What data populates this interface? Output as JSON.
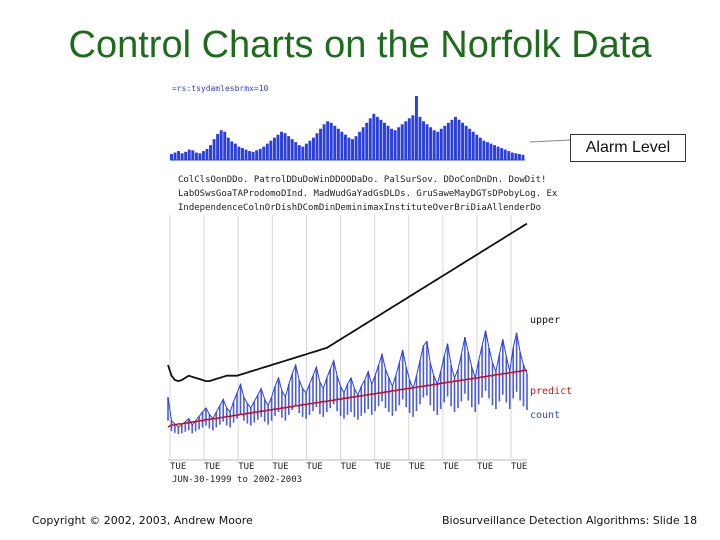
{
  "page": {
    "title": "Control Charts on the Norfolk Data",
    "footer_left": "Copyright © 2002, 2003, Andrew Moore",
    "footer_right": "Biosurveillance Detection Algorithms: Slide 18",
    "alarm_label": "Alarm Level"
  },
  "chart_data": [
    {
      "type": "bar",
      "title": "Alarm level strip",
      "header_label": "=rs:tsydamlesbrmx=10",
      "note": "Dense daily bars (blue) of alarm level over the period",
      "color": "#2b3fe0",
      "series": [
        {
          "name": "alarm",
          "values": [
            8,
            10,
            12,
            9,
            11,
            14,
            13,
            10,
            9,
            12,
            15,
            20,
            28,
            35,
            40,
            38,
            30,
            25,
            22,
            18,
            16,
            14,
            12,
            11,
            13,
            15,
            18,
            22,
            26,
            30,
            34,
            38,
            36,
            32,
            28,
            24,
            20,
            18,
            22,
            26,
            30,
            36,
            42,
            48,
            52,
            50,
            46,
            42,
            38,
            34,
            30,
            28,
            32,
            38,
            44,
            50,
            56,
            62,
            58,
            54,
            50,
            46,
            42,
            40,
            44,
            48,
            52,
            56,
            60,
            86,
            58,
            52,
            48,
            44,
            40,
            38,
            42,
            46,
            50,
            54,
            58,
            54,
            50,
            46,
            42,
            38,
            34,
            30,
            26,
            24,
            22,
            20,
            18,
            16,
            14,
            12,
            10,
            9,
            8,
            7
          ]
        }
      ]
    },
    {
      "type": "line",
      "title": "Norfolk control chart",
      "x_tick_labels": [
        "TUE",
        "TUE",
        "TUE",
        "TUE",
        "TUE",
        "TUE",
        "TUE",
        "TUE",
        "TUE",
        "TUE",
        "TUE"
      ],
      "date_label": "JUN-30-1999 to 2002-2003",
      "header_rows": [
        "ColClsOonDDo. PatrolDDuDoWinDDOODaDo. PalSurSov. DDoConDnDn. DowDit!",
        "LabOSwsGoaTAProdomoDInd. MadWudGaYadGsDLDs. GruSaweMayDGTsDPobyLog. Ex",
        "IndependenceColnOrDishDComDinDeminimaxInstituteOverBriDiaAllenderDo"
      ],
      "series": [
        {
          "name": "count",
          "label": "count",
          "color": "#2b3fe0",
          "values": [
            40,
            18,
            15,
            12,
            14,
            17,
            20,
            14,
            18,
            22,
            26,
            30,
            24,
            20,
            26,
            32,
            38,
            30,
            26,
            36,
            44,
            52,
            40,
            34,
            30,
            36,
            42,
            48,
            38,
            32,
            40,
            50,
            58,
            46,
            40,
            52,
            62,
            70,
            56,
            48,
            44,
            52,
            60,
            68,
            54,
            48,
            58,
            66,
            74,
            60,
            50,
            44,
            52,
            58,
            48,
            42,
            50,
            56,
            64,
            52,
            60,
            70,
            80,
            66,
            58,
            50,
            60,
            72,
            84,
            68,
            56,
            48,
            60,
            74,
            88,
            92,
            72,
            60,
            52,
            64,
            78,
            90,
            70,
            58,
            66,
            80,
            96,
            82,
            68,
            58,
            74,
            88,
            102,
            86,
            72,
            64,
            80,
            94,
            78,
            64,
            86,
            100,
            82,
            70,
            62
          ]
        },
        {
          "name": "predict",
          "label": "predict",
          "color": "#d01010",
          "values": [
            12,
            14,
            14,
            15,
            15,
            16,
            16,
            17,
            17,
            18,
            18,
            19,
            19,
            20,
            20,
            21,
            21,
            22,
            22,
            23,
            23,
            24,
            24,
            25,
            25,
            26,
            26,
            27,
            27,
            28,
            28,
            29,
            29,
            30,
            30,
            31,
            31,
            32,
            32,
            33,
            33,
            34,
            34,
            35,
            35,
            36,
            36,
            37,
            37,
            38,
            38,
            39,
            39,
            40,
            40,
            41,
            41,
            42,
            42,
            43,
            43,
            44,
            44,
            45,
            45,
            46,
            46,
            47,
            47,
            48,
            48,
            49,
            49,
            50,
            50,
            51,
            51,
            52,
            52,
            53,
            53,
            54,
            54,
            55,
            55,
            56,
            56,
            57,
            57,
            58,
            58,
            59,
            59,
            60,
            60,
            61,
            61,
            62,
            62,
            63,
            63,
            64,
            64,
            65,
            65
          ]
        },
        {
          "name": "upper",
          "label": "upper",
          "color": "#111111",
          "values": [
            70,
            60,
            56,
            55,
            56,
            58,
            60,
            59,
            58,
            57,
            56,
            55,
            55,
            56,
            57,
            58,
            59,
            60,
            60,
            60,
            60,
            61,
            62,
            63,
            64,
            65,
            66,
            67,
            68,
            69,
            70,
            71,
            72,
            73,
            74,
            75,
            76,
            77,
            78,
            79,
            80,
            81,
            82,
            83,
            84,
            85,
            86,
            88,
            90,
            92,
            94,
            96,
            98,
            100,
            102,
            104,
            106,
            108,
            110,
            112,
            114,
            116,
            118,
            120,
            122,
            124,
            126,
            128,
            130,
            132,
            134,
            136,
            138,
            140,
            142,
            144,
            146,
            148,
            150,
            152,
            154,
            156,
            158,
            160,
            162,
            164,
            166,
            168,
            170,
            172,
            174,
            176,
            178,
            180,
            182,
            184,
            186,
            188,
            190,
            192,
            194,
            196,
            198,
            200,
            202
          ]
        }
      ],
      "ylim": [
        0,
        210
      ]
    }
  ]
}
